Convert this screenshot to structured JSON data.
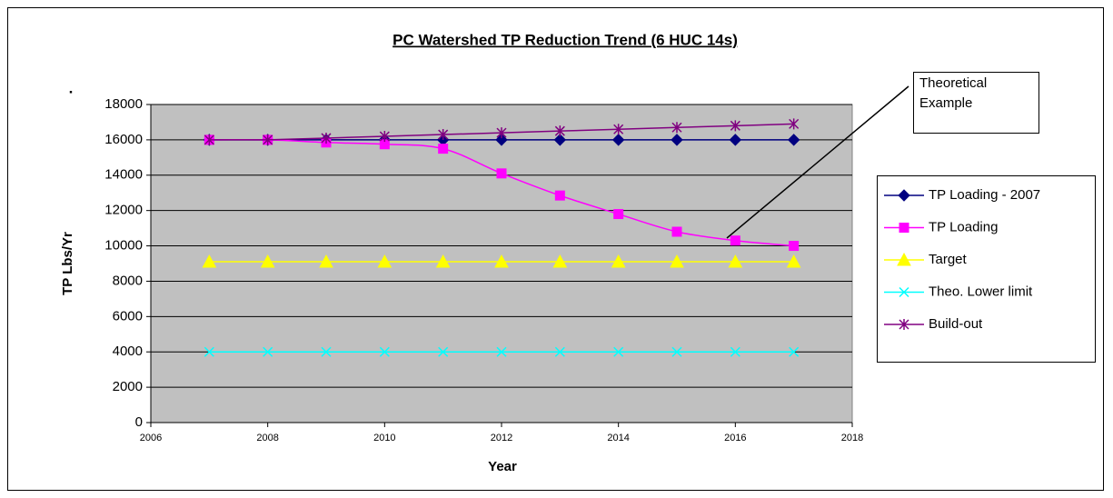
{
  "chart_data": {
    "type": "line",
    "title": "PC Watershed TP Reduction Trend (6 HUC 14s)",
    "x_label": "Year",
    "y_label": "TP Lbs/Yr",
    "y_axis_note": ".",
    "annotation": [
      "Theoretical",
      "Example"
    ],
    "x": [
      2007,
      2008,
      2009,
      2010,
      2011,
      2012,
      2013,
      2014,
      2015,
      2016,
      2017
    ],
    "xlim": [
      2006,
      2018
    ],
    "xticks": [
      2006,
      2008,
      2010,
      2012,
      2014,
      2016,
      2018
    ],
    "ylim": [
      0,
      18000
    ],
    "yticks": [
      0,
      2000,
      4000,
      6000,
      8000,
      10000,
      12000,
      14000,
      16000,
      18000
    ],
    "grid": true,
    "legend": "right",
    "plot_background": "#c0c0c0",
    "series": [
      {
        "name": "TP Loading - 2007",
        "color": "#000080",
        "marker": "diamond",
        "values": [
          16000,
          16000,
          16000,
          16000,
          16000,
          16000,
          16000,
          16000,
          16000,
          16000,
          16000
        ]
      },
      {
        "name": "TP Loading",
        "color": "#ff00ff",
        "marker": "square",
        "smooth": true,
        "values": [
          16000,
          16000,
          15850,
          15750,
          15500,
          14100,
          12850,
          11800,
          10800,
          10300,
          10000
        ]
      },
      {
        "name": "Target",
        "color": "#ffff00",
        "marker": "triangle",
        "values": [
          9100,
          9100,
          9100,
          9100,
          9100,
          9100,
          9100,
          9100,
          9100,
          9100,
          9100
        ]
      },
      {
        "name": "Theo. Lower limit",
        "color": "#00ffff",
        "marker": "x",
        "values": [
          4000,
          4000,
          4000,
          4000,
          4000,
          4000,
          4000,
          4000,
          4000,
          4000,
          4000
        ]
      },
      {
        "name": "Build-out",
        "color": "#800080",
        "marker": "star",
        "values": [
          16000,
          16000,
          16100,
          16200,
          16300,
          16400,
          16500,
          16600,
          16700,
          16800,
          16900
        ]
      }
    ]
  }
}
